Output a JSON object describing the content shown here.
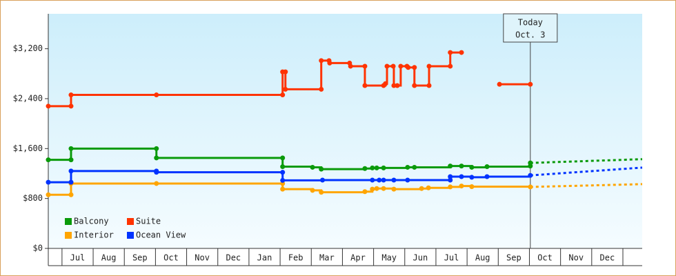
{
  "chart_data": {
    "type": "step-line",
    "ylim": [
      0,
      3760
    ],
    "yticks": [
      {
        "value": 0,
        "label": "$0"
      },
      {
        "value": 800,
        "label": "$800"
      },
      {
        "value": 1600,
        "label": "$1,600"
      },
      {
        "value": 2400,
        "label": "$2,400"
      },
      {
        "value": 3200,
        "label": "$3,200"
      }
    ],
    "xlim": [
      0.56,
      19.62
    ],
    "xticks": [
      {
        "value": 1,
        "label": "Jul"
      },
      {
        "value": 2,
        "label": "Aug"
      },
      {
        "value": 3,
        "label": "Sep"
      },
      {
        "value": 4,
        "label": "Oct"
      },
      {
        "value": 5,
        "label": "Nov"
      },
      {
        "value": 6,
        "label": "Dec"
      },
      {
        "value": 7,
        "label": "Jan"
      },
      {
        "value": 8,
        "label": "Feb"
      },
      {
        "value": 9,
        "label": "Mar"
      },
      {
        "value": 10,
        "label": "Apr"
      },
      {
        "value": 11,
        "label": "May"
      },
      {
        "value": 12,
        "label": "Jun"
      },
      {
        "value": 13,
        "label": "Jul"
      },
      {
        "value": 14,
        "label": "Aug"
      },
      {
        "value": 15,
        "label": "Sep"
      },
      {
        "value": 16,
        "label": "Oct"
      },
      {
        "value": 17,
        "label": "Nov"
      },
      {
        "value": 18,
        "label": "Dec"
      },
      {
        "value": 19,
        "label": ""
      }
    ],
    "annotation": {
      "x": 16.03,
      "lines": [
        "Today",
        "Oct. 3"
      ]
    },
    "series": [
      {
        "name": "Balcony",
        "color": "#0a9a0a",
        "x": [
          0.56,
          1.29,
          1.29,
          4.03,
          4.03,
          8.08,
          8.08,
          9.04,
          9.32,
          10.72,
          10.96,
          11.1,
          11.32,
          12.09,
          12.31,
          13.46,
          13.82,
          14.15,
          14.64,
          16.03,
          16.03
        ],
        "values": [
          1420,
          1420,
          1600,
          1600,
          1450,
          1450,
          1310,
          1300,
          1270,
          1280,
          1290,
          1290,
          1290,
          1300,
          1300,
          1320,
          1320,
          1300,
          1310,
          1320,
          1370
        ],
        "forecast": {
          "x": [
            16.03,
            19.62
          ],
          "values": [
            1370,
            1430
          ]
        }
      },
      {
        "name": "Suite",
        "color": "#ff3300",
        "x": [
          0.56,
          1.29,
          1.29,
          4.03,
          8.08,
          8.08,
          8.17,
          8.17,
          9.32,
          9.32,
          9.57,
          9.59,
          10.23,
          10.26,
          10.72,
          10.72,
          11.32,
          11.38,
          11.43,
          11.63,
          11.65,
          11.76,
          11.87,
          12.07,
          12.11,
          12.31,
          12.31,
          12.78,
          12.78,
          13.46,
          13.46,
          13.82,
          14.5,
          15.04,
          16.03
        ],
        "values": [
          2280,
          2280,
          2460,
          2460,
          2460,
          2830,
          2830,
          2550,
          2550,
          3010,
          3010,
          2970,
          2970,
          2920,
          2920,
          2610,
          2610,
          2640,
          2920,
          2920,
          2610,
          2610,
          2920,
          2920,
          2900,
          2900,
          2610,
          2610,
          2920,
          2920,
          3140,
          3140,
          null,
          2630,
          2630
        ]
      },
      {
        "name": "Interior",
        "color": "#ffa500",
        "x": [
          0.56,
          1.29,
          1.29,
          4.03,
          8.08,
          8.08,
          9.04,
          9.32,
          10.72,
          10.96,
          11.1,
          11.32,
          11.65,
          12.54,
          12.76,
          13.46,
          13.82,
          14.15,
          16.03
        ],
        "values": [
          860,
          860,
          1040,
          1040,
          1040,
          950,
          930,
          900,
          910,
          950,
          960,
          960,
          950,
          960,
          970,
          985,
          1000,
          990,
          985
        ],
        "forecast": {
          "x": [
            16.03,
            19.62
          ],
          "values": [
            985,
            1030
          ]
        }
      },
      {
        "name": "Ocean View",
        "color": "#0033ff",
        "x": [
          0.56,
          1.29,
          1.29,
          4.03,
          4.03,
          8.08,
          8.08,
          9.36,
          10.96,
          11.18,
          11.32,
          11.65,
          12.09,
          13.46,
          13.46,
          13.82,
          14.15,
          14.64,
          16.03
        ],
        "values": [
          1060,
          1060,
          1240,
          1240,
          1220,
          1220,
          1090,
          1095,
          1095,
          1095,
          1095,
          1095,
          1095,
          1095,
          1150,
          1150,
          1140,
          1150,
          1170
        ],
        "forecast": {
          "x": [
            16.03,
            19.62
          ],
          "values": [
            1170,
            1295
          ]
        }
      }
    ]
  }
}
